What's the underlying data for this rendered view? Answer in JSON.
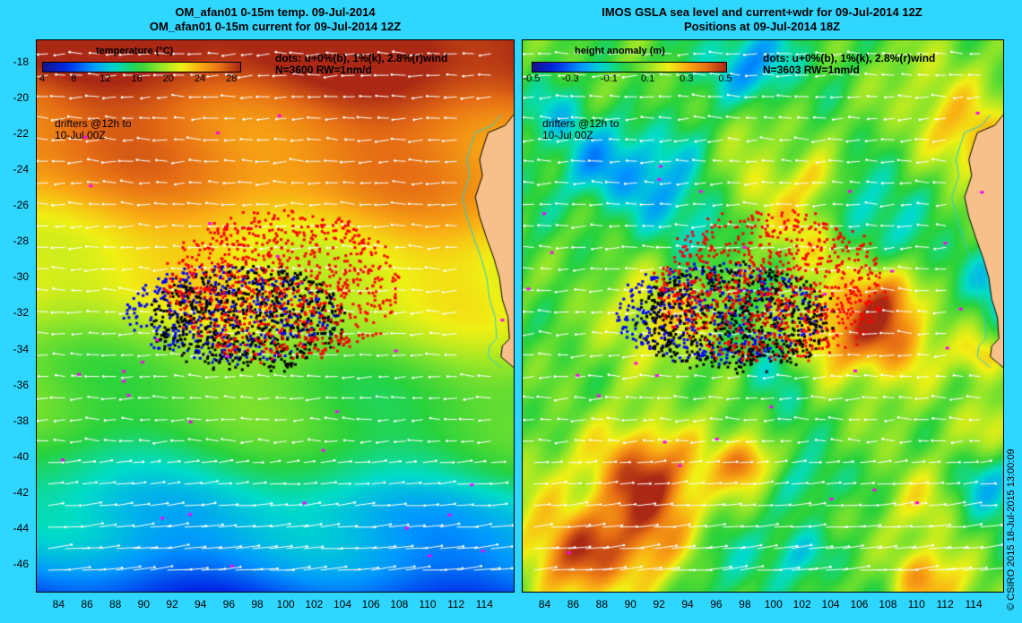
{
  "left": {
    "title_line1": "OM_afan01 0-15m temp. 09-Jul-2014",
    "title_line2": "OM_afan01 0-15m current for 09-Jul-2014 12Z",
    "colorbar_title": "temperature (°C)",
    "colorbar_ticks": [
      "4",
      "8",
      "12",
      "16",
      "20",
      "24",
      "28"
    ],
    "colorbar_range": [
      4,
      29
    ],
    "dots_note": "dots: u+0%(b), 1%(k), 2.8%(r)wind",
    "stats": "N=3600 RW=1nm/d",
    "drifters_note_1": "drifters @12h to",
    "drifters_note_2": "10-Jul 00Z"
  },
  "right": {
    "title_line1": "IMOS GSLA sea level and current+wdr for 09-Jul-2014 12Z",
    "title_line2": "Positions at 09-Jul-2014 18Z",
    "colorbar_title": "height anomaly  (m)",
    "colorbar_ticks": [
      "-0.5",
      "-0.3",
      "-0.1",
      "0.1",
      "0.3",
      "0.5"
    ],
    "colorbar_range": [
      -0.5,
      0.5
    ],
    "dots_note": "dots: u+0%(b), 1%(k), 2.8%(r)wind",
    "stats": "N=3603 RW=1nm/d",
    "drifters_note_1": "drifters @12h to",
    "drifters_note_2": "10-Jul 00Z"
  },
  "y_axis_labels": [
    "-18",
    "-20",
    "-22",
    "-24",
    "-26",
    "-28",
    "-30",
    "-32",
    "-34",
    "-36",
    "-38",
    "-40",
    "-42",
    "-44",
    "-46"
  ],
  "x_axis_labels": [
    "84",
    "86",
    "88",
    "90",
    "92",
    "94",
    "96",
    "98",
    "100",
    "102",
    "104",
    "106",
    "108",
    "110",
    "112",
    "114"
  ],
  "credit": "© CSIRO 2015   18-Jul-2015 13:00:09",
  "colors": {
    "background": "#2fd6ff",
    "land": "#f7c08a",
    "coast": "#20d0d0",
    "dots_b": "#0000ff",
    "dots_k": "#000000",
    "dots_r": "#ff0000",
    "dots_m": "#ff00ff"
  }
}
